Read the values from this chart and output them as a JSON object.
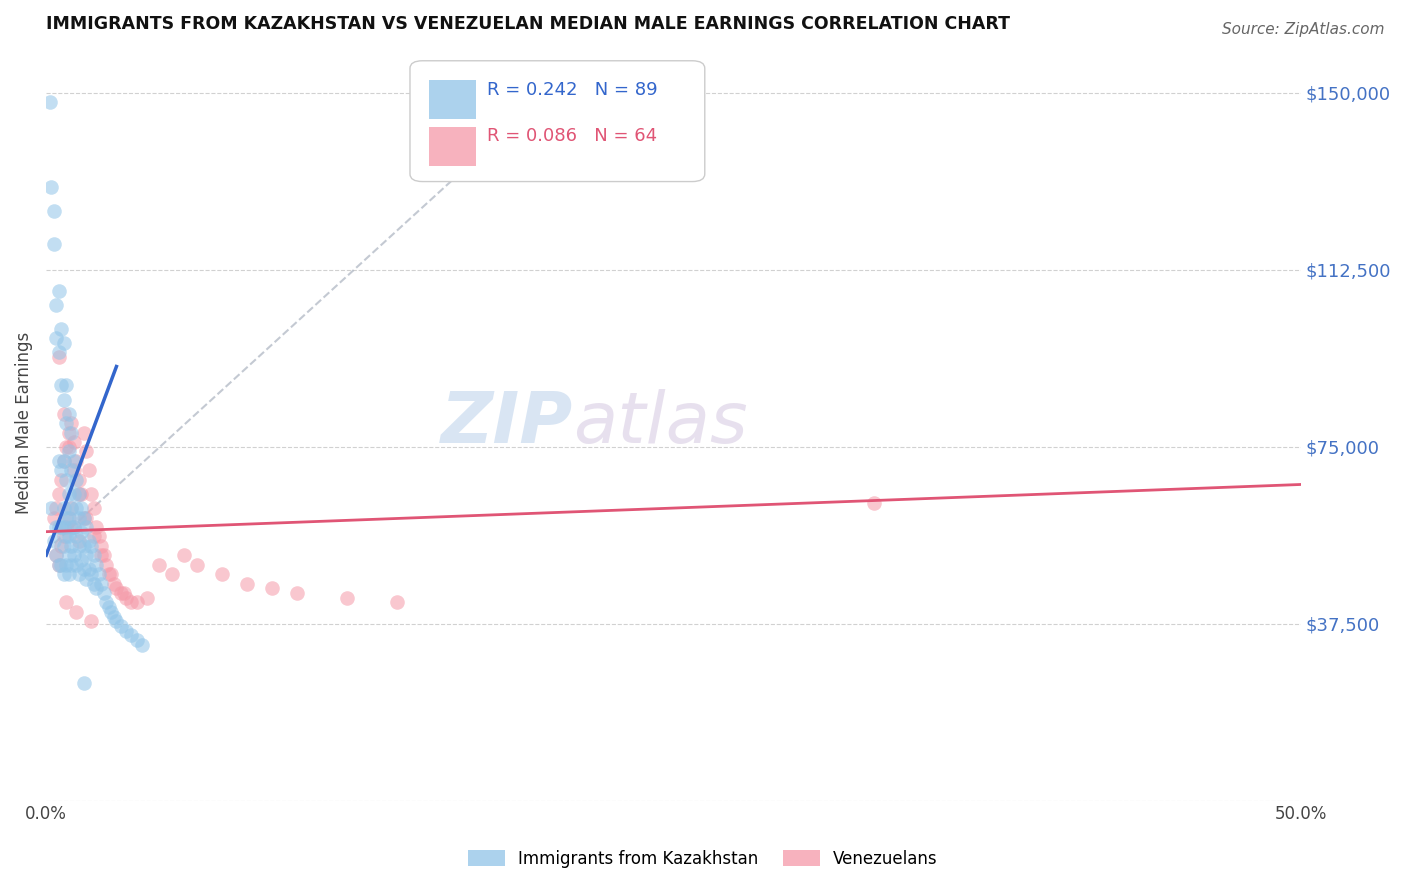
{
  "title": "IMMIGRANTS FROM KAZAKHSTAN VS VENEZUELAN MEDIAN MALE EARNINGS CORRELATION CHART",
  "source": "Source: ZipAtlas.com",
  "ylabel": "Median Male Earnings",
  "xlim": [
    0.0,
    0.5
  ],
  "ylim": [
    0,
    160000
  ],
  "yticks": [
    0,
    37500,
    75000,
    112500,
    150000
  ],
  "ytick_labels": [
    "",
    "$37,500",
    "$75,000",
    "$112,500",
    "$150,000"
  ],
  "xticks": [
    0.0,
    0.1,
    0.2,
    0.3,
    0.4,
    0.5
  ],
  "xtick_labels": [
    "0.0%",
    "",
    "",
    "",
    "",
    "50.0%"
  ],
  "legend_R1": "R = 0.242",
  "legend_N1": "N = 89",
  "legend_R2": "R = 0.086",
  "legend_N2": "N = 64",
  "color_kaz": "#90c4e8",
  "color_ven": "#f599a8",
  "color_trend_kaz": "#3366cc",
  "color_trend_ven": "#e05575",
  "color_ref_line": "#b0b8c4",
  "color_title": "#111111",
  "color_ytick_right": "#4472c4",
  "color_source": "#666666",
  "watermark_zip": "ZIP",
  "watermark_atlas": "atlas",
  "background_color": "#ffffff",
  "kaz_x": [
    0.0015,
    0.002,
    0.002,
    0.003,
    0.003,
    0.003,
    0.004,
    0.004,
    0.004,
    0.004,
    0.005,
    0.005,
    0.005,
    0.005,
    0.005,
    0.006,
    0.006,
    0.006,
    0.006,
    0.006,
    0.007,
    0.007,
    0.007,
    0.007,
    0.007,
    0.007,
    0.007,
    0.008,
    0.008,
    0.008,
    0.008,
    0.008,
    0.008,
    0.009,
    0.009,
    0.009,
    0.009,
    0.009,
    0.009,
    0.009,
    0.01,
    0.01,
    0.01,
    0.01,
    0.01,
    0.01,
    0.011,
    0.011,
    0.011,
    0.011,
    0.012,
    0.012,
    0.012,
    0.012,
    0.013,
    0.013,
    0.013,
    0.013,
    0.014,
    0.014,
    0.014,
    0.015,
    0.015,
    0.015,
    0.016,
    0.016,
    0.016,
    0.017,
    0.017,
    0.018,
    0.018,
    0.019,
    0.019,
    0.02,
    0.02,
    0.021,
    0.022,
    0.023,
    0.024,
    0.025,
    0.026,
    0.027,
    0.028,
    0.03,
    0.032,
    0.034,
    0.036,
    0.038,
    0.015
  ],
  "kaz_y": [
    148000,
    130000,
    62000,
    125000,
    118000,
    55000,
    105000,
    98000,
    58000,
    52000,
    108000,
    95000,
    72000,
    58000,
    50000,
    100000,
    88000,
    70000,
    58000,
    50000,
    97000,
    85000,
    72000,
    62000,
    58000,
    54000,
    48000,
    88000,
    80000,
    68000,
    60000,
    56000,
    50000,
    82000,
    74000,
    65000,
    60000,
    56000,
    52000,
    48000,
    78000,
    70000,
    62000,
    58000,
    54000,
    50000,
    72000,
    65000,
    58000,
    52000,
    68000,
    62000,
    56000,
    50000,
    65000,
    60000,
    54000,
    48000,
    62000,
    57000,
    51000,
    60000,
    54000,
    49000,
    58000,
    52000,
    47000,
    55000,
    49000,
    54000,
    48000,
    52000,
    46000,
    50000,
    45000,
    48000,
    46000,
    44000,
    42000,
    41000,
    40000,
    39000,
    38000,
    37000,
    36000,
    35000,
    34000,
    33000,
    25000
  ],
  "ven_x": [
    0.003,
    0.004,
    0.004,
    0.005,
    0.005,
    0.006,
    0.006,
    0.007,
    0.007,
    0.008,
    0.008,
    0.009,
    0.009,
    0.01,
    0.01,
    0.011,
    0.011,
    0.012,
    0.013,
    0.013,
    0.014,
    0.015,
    0.015,
    0.016,
    0.017,
    0.018,
    0.019,
    0.02,
    0.021,
    0.022,
    0.023,
    0.024,
    0.025,
    0.027,
    0.028,
    0.03,
    0.032,
    0.034,
    0.036,
    0.04,
    0.045,
    0.05,
    0.055,
    0.06,
    0.07,
    0.08,
    0.09,
    0.1,
    0.12,
    0.14,
    0.005,
    0.007,
    0.009,
    0.011,
    0.013,
    0.016,
    0.019,
    0.022,
    0.026,
    0.031,
    0.008,
    0.012,
    0.018,
    0.33
  ],
  "ven_y": [
    60000,
    62000,
    52000,
    65000,
    50000,
    68000,
    54000,
    72000,
    56000,
    75000,
    58000,
    78000,
    60000,
    80000,
    62000,
    76000,
    58000,
    72000,
    68000,
    55000,
    65000,
    78000,
    60000,
    74000,
    70000,
    65000,
    62000,
    58000,
    56000,
    54000,
    52000,
    50000,
    48000,
    46000,
    45000,
    44000,
    43000,
    42000,
    42000,
    43000,
    50000,
    48000,
    52000,
    50000,
    48000,
    46000,
    45000,
    44000,
    43000,
    42000,
    94000,
    82000,
    75000,
    70000,
    65000,
    60000,
    56000,
    52000,
    48000,
    44000,
    42000,
    40000,
    38000,
    63000
  ],
  "kaz_trend_x": [
    0.0,
    0.028
  ],
  "kaz_trend_y": [
    52000,
    92000
  ],
  "ven_trend_x": [
    0.0,
    0.5
  ],
  "ven_trend_y": [
    57000,
    67000
  ],
  "ref_line_x": [
    0.0,
    0.2
  ],
  "ref_line_y": [
    53000,
    150000
  ]
}
